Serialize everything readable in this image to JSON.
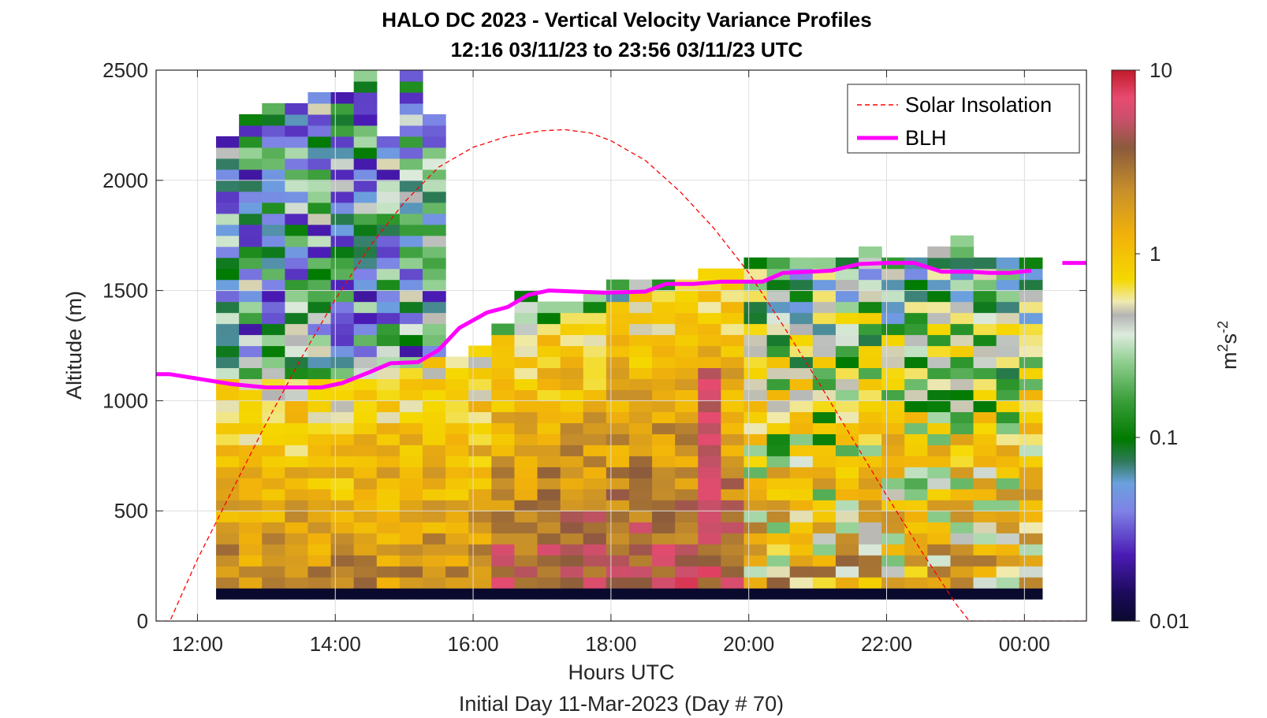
{
  "chart_data": {
    "type": "heatmap",
    "title": "HALO DC 2023 - Vertical Velocity Variance Profiles",
    "subtitle": "12:16 03/11/23 to 23:56 03/11/23  UTC",
    "xlabel": "Hours UTC",
    "xlabel2": "Initial Day 11-Mar-2023 (Day # 70)",
    "ylabel": "Altitude (m)",
    "xlim": [
      11.4,
      24.9
    ],
    "ylim": [
      0,
      2500
    ],
    "x_ticks": [
      12,
      14,
      16,
      18,
      20,
      22,
      24
    ],
    "x_tick_labels": [
      "12:00",
      "14:00",
      "16:00",
      "18:00",
      "20:00",
      "22:00",
      "00:00"
    ],
    "y_ticks": [
      0,
      500,
      1000,
      1500,
      2000,
      2500
    ],
    "y_tick_labels": [
      "0",
      "500",
      "1000",
      "1500",
      "2000",
      "2500"
    ],
    "grid": true,
    "legend_placement": "top-right",
    "colorbar": {
      "label_base": "m",
      "label_sup1": "2",
      "label_mid": "s",
      "label_sup2": "-2",
      "scale": "log",
      "range": [
        0.01,
        10
      ],
      "tick_values": [
        0.01,
        0.1,
        1,
        10
      ],
      "tick_labels": [
        "0.01",
        "0.1",
        "1",
        "10"
      ]
    },
    "heatmap": {
      "x_start": 12.27,
      "dx": 0.333,
      "n_cols": 36,
      "y_start": 100,
      "dy": 50,
      "description": "log10 variance per cell; rows from 100 m upward",
      "column_tops": [
        2200,
        2300,
        2350,
        2350,
        2400,
        2400,
        2500,
        2200,
        2500,
        2300,
        1200,
        1250,
        1350,
        1500,
        1450,
        1450,
        1500,
        1550,
        1550,
        1550,
        1550,
        1600,
        1600,
        1650,
        1650,
        1650,
        1650,
        1650,
        1700,
        1650,
        1650,
        1700,
        1750,
        1650,
        1650,
        1650
      ],
      "low_band_value": -2.0
    },
    "series": [
      {
        "name": "Solar Insolation",
        "color": "#ff0000",
        "style": "dashed",
        "x": [
          11.4,
          11.6,
          12.0,
          12.5,
          13.0,
          13.5,
          14.0,
          14.5,
          15.0,
          15.5,
          16.0,
          16.5,
          17.0,
          17.33,
          17.7,
          18.0,
          18.5,
          19.0,
          19.5,
          20.0,
          20.5,
          21.0,
          21.5,
          22.0,
          22.5,
          23.0,
          23.2,
          24.0,
          24.9
        ],
        "y": [
          0,
          0,
          280,
          590,
          900,
          1190,
          1460,
          1700,
          1900,
          2060,
          2150,
          2200,
          2225,
          2230,
          2215,
          2180,
          2090,
          1950,
          1780,
          1580,
          1340,
          1090,
          830,
          570,
          320,
          80,
          0,
          0,
          0
        ]
      },
      {
        "name": "BLH",
        "color": "#ff00ff",
        "style": "solid",
        "x": [
          11.4,
          11.6,
          12.0,
          12.5,
          13.0,
          13.5,
          13.8,
          14.1,
          14.5,
          14.8,
          15.2,
          15.5,
          15.8,
          16.2,
          16.5,
          16.8,
          17.1,
          17.5,
          17.9,
          18.5,
          18.8,
          19.2,
          19.6,
          20.2,
          20.5,
          20.9,
          21.2,
          21.6,
          22.0,
          22.4,
          22.8,
          23.2,
          23.5,
          23.8,
          24.1
        ],
        "y": [
          1120,
          1120,
          1100,
          1075,
          1060,
          1060,
          1060,
          1080,
          1130,
          1170,
          1175,
          1230,
          1330,
          1400,
          1425,
          1480,
          1500,
          1495,
          1490,
          1495,
          1530,
          1530,
          1540,
          1540,
          1580,
          1585,
          1590,
          1620,
          1625,
          1625,
          1585,
          1585,
          1580,
          1580,
          1590
        ]
      },
      {
        "name": "",
        "color": "#ff00ff",
        "style": "solid",
        "x": [
          24.55,
          24.9
        ],
        "y": [
          1625,
          1625
        ]
      }
    ]
  }
}
